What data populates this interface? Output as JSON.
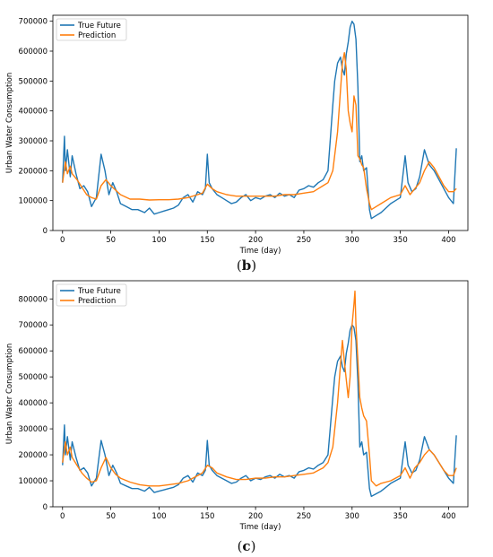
{
  "chart_data": [
    {
      "type": "line",
      "panel_label": "b",
      "xlabel": "Time (day)",
      "ylabel": "Urban Water Consumption",
      "xlim": [
        -10,
        420
      ],
      "ylim": [
        0,
        720000
      ],
      "xticks": [
        0,
        50,
        100,
        150,
        200,
        250,
        300,
        350,
        400
      ],
      "yticks": [
        0,
        100000,
        200000,
        300000,
        400000,
        500000,
        600000,
        700000
      ],
      "legend": "top-left",
      "grid": false,
      "series": [
        {
          "name": "True Future",
          "color": "#1f77b4",
          "x": [
            0,
            2,
            3,
            5,
            8,
            10,
            14,
            18,
            22,
            26,
            30,
            35,
            40,
            44,
            48,
            52,
            56,
            60,
            66,
            72,
            78,
            85,
            90,
            95,
            100,
            105,
            110,
            115,
            120,
            125,
            130,
            135,
            140,
            145,
            148,
            150,
            152,
            155,
            160,
            165,
            170,
            175,
            180,
            185,
            190,
            195,
            200,
            205,
            210,
            215,
            220,
            225,
            230,
            235,
            240,
            245,
            250,
            255,
            260,
            265,
            270,
            275,
            278,
            280,
            282,
            285,
            288,
            290,
            292,
            294,
            296,
            298,
            300,
            302,
            304,
            306,
            308,
            310,
            312,
            315,
            318,
            320,
            325,
            330,
            335,
            340,
            345,
            350,
            355,
            358,
            362,
            366,
            370,
            375,
            380,
            385,
            390,
            395,
            400,
            405,
            408
          ],
          "y": [
            160000,
            315000,
            200000,
            270000,
            180000,
            250000,
            190000,
            140000,
            150000,
            130000,
            80000,
            110000,
            255000,
            200000,
            120000,
            160000,
            130000,
            90000,
            80000,
            70000,
            70000,
            60000,
            75000,
            55000,
            60000,
            65000,
            70000,
            75000,
            85000,
            110000,
            120000,
            95000,
            130000,
            120000,
            140000,
            255000,
            160000,
            140000,
            120000,
            110000,
            100000,
            90000,
            95000,
            110000,
            120000,
            100000,
            110000,
            105000,
            115000,
            120000,
            110000,
            125000,
            115000,
            120000,
            110000,
            135000,
            140000,
            150000,
            145000,
            160000,
            170000,
            200000,
            330000,
            420000,
            500000,
            560000,
            580000,
            540000,
            520000,
            590000,
            630000,
            680000,
            700000,
            690000,
            640000,
            480000,
            230000,
            250000,
            200000,
            210000,
            70000,
            40000,
            50000,
            60000,
            75000,
            90000,
            100000,
            110000,
            250000,
            160000,
            130000,
            140000,
            180000,
            270000,
            220000,
            200000,
            170000,
            140000,
            110000,
            90000,
            275000
          ]
        },
        {
          "name": "Prediction",
          "color": "#ff7f0e",
          "x": [
            0,
            3,
            5,
            8,
            10,
            15,
            20,
            25,
            30,
            35,
            40,
            45,
            50,
            55,
            60,
            70,
            80,
            90,
            100,
            110,
            120,
            130,
            140,
            145,
            150,
            155,
            160,
            170,
            180,
            190,
            200,
            210,
            220,
            230,
            240,
            250,
            260,
            265,
            270,
            275,
            280,
            285,
            290,
            292,
            294,
            296,
            298,
            300,
            302,
            304,
            306,
            308,
            310,
            312,
            315,
            318,
            320,
            325,
            330,
            340,
            350,
            355,
            360,
            365,
            370,
            375,
            380,
            385,
            390,
            395,
            400,
            405,
            408
          ],
          "y": [
            160000,
            230000,
            190000,
            215000,
            190000,
            170000,
            145000,
            120000,
            110000,
            105000,
            150000,
            170000,
            150000,
            135000,
            120000,
            105000,
            105000,
            102000,
            103000,
            103000,
            105000,
            110000,
            120000,
            125000,
            155000,
            140000,
            130000,
            120000,
            115000,
            115000,
            115000,
            115000,
            115000,
            120000,
            120000,
            125000,
            130000,
            140000,
            150000,
            160000,
            200000,
            330000,
            560000,
            595000,
            540000,
            400000,
            360000,
            330000,
            450000,
            420000,
            250000,
            240000,
            220000,
            210000,
            140000,
            90000,
            70000,
            80000,
            90000,
            110000,
            120000,
            150000,
            120000,
            140000,
            160000,
            200000,
            230000,
            210000,
            180000,
            150000,
            130000,
            130000,
            140000
          ]
        }
      ]
    },
    {
      "type": "line",
      "panel_label": "c",
      "xlabel": "Time (day)",
      "ylabel": "Urban Water Consumption",
      "xlim": [
        -10,
        420
      ],
      "ylim": [
        0,
        870000
      ],
      "xticks": [
        0,
        50,
        100,
        150,
        200,
        250,
        300,
        350,
        400
      ],
      "yticks": [
        0,
        100000,
        200000,
        300000,
        400000,
        500000,
        600000,
        700000,
        800000
      ],
      "legend": "top-left",
      "grid": false,
      "series": [
        {
          "name": "True Future",
          "color": "#1f77b4",
          "x": [
            0,
            2,
            3,
            5,
            8,
            10,
            14,
            18,
            22,
            26,
            30,
            35,
            40,
            44,
            48,
            52,
            56,
            60,
            66,
            72,
            78,
            85,
            90,
            95,
            100,
            105,
            110,
            115,
            120,
            125,
            130,
            135,
            140,
            145,
            148,
            150,
            152,
            155,
            160,
            165,
            170,
            175,
            180,
            185,
            190,
            195,
            200,
            205,
            210,
            215,
            220,
            225,
            230,
            235,
            240,
            245,
            250,
            255,
            260,
            265,
            270,
            275,
            278,
            280,
            282,
            285,
            288,
            290,
            292,
            294,
            296,
            298,
            300,
            302,
            304,
            306,
            308,
            310,
            312,
            315,
            318,
            320,
            325,
            330,
            335,
            340,
            345,
            350,
            355,
            358,
            362,
            366,
            370,
            375,
            380,
            385,
            390,
            395,
            400,
            405,
            408
          ],
          "y": [
            160000,
            315000,
            200000,
            270000,
            180000,
            250000,
            190000,
            140000,
            150000,
            130000,
            80000,
            110000,
            255000,
            200000,
            120000,
            160000,
            130000,
            90000,
            80000,
            70000,
            70000,
            60000,
            75000,
            55000,
            60000,
            65000,
            70000,
            75000,
            85000,
            110000,
            120000,
            95000,
            130000,
            120000,
            140000,
            255000,
            160000,
            140000,
            120000,
            110000,
            100000,
            90000,
            95000,
            110000,
            120000,
            100000,
            110000,
            105000,
            115000,
            120000,
            110000,
            125000,
            115000,
            120000,
            110000,
            135000,
            140000,
            150000,
            145000,
            160000,
            170000,
            200000,
            330000,
            420000,
            500000,
            560000,
            580000,
            540000,
            520000,
            590000,
            630000,
            680000,
            700000,
            690000,
            640000,
            480000,
            230000,
            250000,
            200000,
            210000,
            70000,
            40000,
            50000,
            60000,
            75000,
            90000,
            100000,
            110000,
            250000,
            160000,
            130000,
            140000,
            180000,
            270000,
            220000,
            200000,
            170000,
            140000,
            110000,
            90000,
            275000
          ]
        },
        {
          "name": "Prediction",
          "color": "#ff7f0e",
          "x": [
            0,
            3,
            5,
            8,
            10,
            15,
            20,
            25,
            30,
            35,
            40,
            45,
            50,
            55,
            60,
            70,
            80,
            90,
            100,
            110,
            120,
            130,
            140,
            145,
            150,
            155,
            160,
            170,
            180,
            190,
            200,
            210,
            220,
            230,
            240,
            250,
            260,
            265,
            270,
            275,
            280,
            285,
            288,
            290,
            292,
            294,
            296,
            298,
            300,
            302,
            303,
            304,
            306,
            308,
            310,
            312,
            315,
            318,
            320,
            325,
            330,
            340,
            350,
            355,
            360,
            365,
            370,
            375,
            380,
            385,
            390,
            395,
            400,
            405,
            408
          ],
          "y": [
            170000,
            250000,
            200000,
            230000,
            190000,
            160000,
            130000,
            110000,
            95000,
            100000,
            150000,
            190000,
            150000,
            125000,
            110000,
            95000,
            85000,
            80000,
            80000,
            85000,
            90000,
            100000,
            120000,
            130000,
            160000,
            150000,
            130000,
            115000,
            105000,
            105000,
            110000,
            110000,
            115000,
            115000,
            120000,
            125000,
            130000,
            140000,
            150000,
            170000,
            230000,
            400000,
            550000,
            640000,
            560000,
            490000,
            420000,
            500000,
            700000,
            780000,
            830000,
            700000,
            560000,
            420000,
            380000,
            350000,
            330000,
            200000,
            100000,
            80000,
            90000,
            100000,
            120000,
            150000,
            110000,
            150000,
            170000,
            200000,
            220000,
            200000,
            170000,
            140000,
            120000,
            120000,
            150000
          ]
        }
      ]
    }
  ]
}
